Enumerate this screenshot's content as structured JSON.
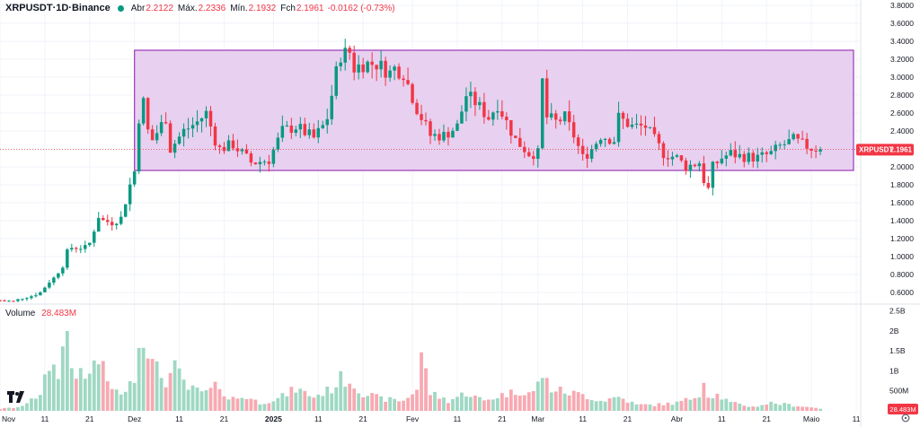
{
  "header": {
    "symbol": "XRPUSDT",
    "sep1": " · ",
    "interval": "1D",
    "sep2": " · ",
    "exchange": "Binance",
    "open_label": "Abr",
    "open_value": "2.2122",
    "high_label": "Máx.",
    "high_value": "2.2336",
    "low_label": "Mín.",
    "low_value": "2.1932",
    "close_label": "Fch",
    "close_value": "2.1961",
    "change_value": "-0.0162 (-0.73%)"
  },
  "volume_panel": {
    "label": "Volume",
    "value": "28.483M",
    "badge": "28.483M"
  },
  "price_badge": {
    "text": "XRPUSDT",
    "value": "2.1961"
  },
  "colors": {
    "up": "#089981",
    "down": "#f23645",
    "up_vol": "#9fd8c3",
    "down_vol": "#f7a9b1",
    "range_fill": "#e8d0f0",
    "range_stroke": "#9b38b8"
  },
  "chart_data": {
    "type": "candlestick",
    "x_range": [
      "2024-11-01",
      "2025-05-12"
    ],
    "price_ylim": [
      0.5,
      3.8
    ],
    "volume_ylim": [
      0,
      2.6
    ],
    "volume_unit": "B",
    "price_ticks": [
      "0.6000",
      "0.8000",
      "1.0000",
      "1.2000",
      "1.4000",
      "1.6000",
      "1.8000",
      "2.0000",
      "2.2000",
      "2.4000",
      "2.6000",
      "2.8000",
      "3.0000",
      "3.2000",
      "3.4000",
      "3.6000",
      "3.8000"
    ],
    "volume_ticks": [
      {
        "v": 0.5,
        "label": "500M"
      },
      {
        "v": 1.0,
        "label": "1B"
      },
      {
        "v": 1.5,
        "label": "1.5B"
      },
      {
        "v": 2.0,
        "label": "2B"
      },
      {
        "v": 2.5,
        "label": "2.5B"
      }
    ],
    "x_ticks": [
      {
        "date": "2024-11-01",
        "label": "Nov",
        "bold": false
      },
      {
        "date": "2024-11-11",
        "label": "11",
        "bold": false
      },
      {
        "date": "2024-11-21",
        "label": "21",
        "bold": false
      },
      {
        "date": "2024-12-01",
        "label": "Dez",
        "bold": false
      },
      {
        "date": "2024-12-11",
        "label": "11",
        "bold": false
      },
      {
        "date": "2024-12-21",
        "label": "21",
        "bold": false
      },
      {
        "date": "2025-01-01",
        "label": "2025",
        "bold": true
      },
      {
        "date": "2025-01-11",
        "label": "11",
        "bold": false
      },
      {
        "date": "2025-01-21",
        "label": "21",
        "bold": false
      },
      {
        "date": "2025-02-01",
        "label": "Fev",
        "bold": false
      },
      {
        "date": "2025-02-11",
        "label": "11",
        "bold": false
      },
      {
        "date": "2025-02-21",
        "label": "21",
        "bold": false
      },
      {
        "date": "2025-03-01",
        "label": "Mar",
        "bold": false
      },
      {
        "date": "2025-03-11",
        "label": "11",
        "bold": false
      },
      {
        "date": "2025-03-21",
        "label": "21",
        "bold": false
      },
      {
        "date": "2025-04-01",
        "label": "Abr",
        "bold": false
      },
      {
        "date": "2025-04-11",
        "label": "11",
        "bold": false
      },
      {
        "date": "2025-04-21",
        "label": "21",
        "bold": false
      },
      {
        "date": "2025-05-01",
        "label": "Maio",
        "bold": false
      },
      {
        "date": "2025-05-11",
        "label": "11",
        "bold": false
      }
    ],
    "range_box": {
      "x0": "2024-12-01",
      "x1": "2025-05-12",
      "y_low": 1.96,
      "y_high": 3.3
    },
    "last_price": 2.1961,
    "close_anchors": [
      [
        "2024-11-01",
        0.51
      ],
      [
        "2024-11-04",
        0.5
      ],
      [
        "2024-11-06",
        0.54
      ],
      [
        "2024-11-08",
        0.56
      ],
      [
        "2024-11-10",
        0.6
      ],
      [
        "2024-11-12",
        0.72
      ],
      [
        "2024-11-13",
        0.76
      ],
      [
        "2024-11-15",
        0.9
      ],
      [
        "2024-11-16",
        1.05
      ],
      [
        "2024-11-17",
        1.1
      ],
      [
        "2024-11-20",
        1.1
      ],
      [
        "2024-11-21",
        1.15
      ],
      [
        "2024-11-23",
        1.45
      ],
      [
        "2024-11-24",
        1.4
      ],
      [
        "2024-11-26",
        1.38
      ],
      [
        "2024-11-28",
        1.43
      ],
      [
        "2024-11-30",
        1.8
      ],
      [
        "2024-12-01",
        1.95
      ],
      [
        "2024-12-02",
        2.55
      ],
      [
        "2024-12-03",
        2.72
      ],
      [
        "2024-12-04",
        2.4
      ],
      [
        "2024-12-05",
        2.3
      ],
      [
        "2024-12-08",
        2.55
      ],
      [
        "2024-12-09",
        2.2
      ],
      [
        "2024-12-12",
        2.4
      ],
      [
        "2024-12-15",
        2.5
      ],
      [
        "2024-12-17",
        2.6
      ],
      [
        "2024-12-19",
        2.3
      ],
      [
        "2024-12-20",
        2.2
      ],
      [
        "2024-12-23",
        2.25
      ],
      [
        "2024-12-27",
        2.05
      ],
      [
        "2024-12-28",
        2.05
      ],
      [
        "2024-12-31",
        2.08
      ],
      [
        "2025-01-03",
        2.4
      ],
      [
        "2025-01-06",
        2.45
      ],
      [
        "2025-01-10",
        2.32
      ],
      [
        "2025-01-12",
        2.45
      ],
      [
        "2025-01-13",
        2.55
      ],
      [
        "2025-01-15",
        3.05
      ],
      [
        "2025-01-16",
        3.25
      ],
      [
        "2025-01-18",
        3.28
      ],
      [
        "2025-01-19",
        3.1
      ],
      [
        "2025-01-21",
        3.15
      ],
      [
        "2025-01-24",
        3.15
      ],
      [
        "2025-01-27",
        3.05
      ],
      [
        "2025-01-28",
        3.1
      ],
      [
        "2025-01-30",
        3.05
      ],
      [
        "2025-02-02",
        2.65
      ],
      [
        "2025-02-03",
        2.55
      ],
      [
        "2025-02-05",
        2.35
      ],
      [
        "2025-02-08",
        2.35
      ],
      [
        "2025-02-11",
        2.45
      ],
      [
        "2025-02-13",
        2.8
      ],
      [
        "2025-02-15",
        2.72
      ],
      [
        "2025-02-18",
        2.55
      ],
      [
        "2025-02-20",
        2.7
      ],
      [
        "2025-02-24",
        2.3
      ],
      [
        "2025-02-25",
        2.25
      ],
      [
        "2025-02-27",
        2.15
      ],
      [
        "2025-03-01",
        2.15
      ],
      [
        "2025-03-02",
        2.95
      ],
      [
        "2025-03-03",
        2.55
      ],
      [
        "2025-03-05",
        2.5
      ],
      [
        "2025-03-07",
        2.55
      ],
      [
        "2025-03-09",
        2.35
      ],
      [
        "2025-03-11",
        2.1
      ],
      [
        "2025-03-13",
        2.2
      ],
      [
        "2025-03-15",
        2.35
      ],
      [
        "2025-03-18",
        2.3
      ],
      [
        "2025-03-19",
        2.55
      ],
      [
        "2025-03-22",
        2.45
      ],
      [
        "2025-03-25",
        2.45
      ],
      [
        "2025-03-27",
        2.3
      ],
      [
        "2025-03-29",
        2.15
      ],
      [
        "2025-04-01",
        2.1
      ],
      [
        "2025-04-03",
        2.0
      ],
      [
        "2025-04-06",
        2.05
      ],
      [
        "2025-04-07",
        1.85
      ],
      [
        "2025-04-08",
        1.75
      ],
      [
        "2025-04-09",
        2.0
      ],
      [
        "2025-04-11",
        2.1
      ],
      [
        "2025-04-13",
        2.15
      ],
      [
        "2025-04-15",
        2.12
      ],
      [
        "2025-04-19",
        2.1
      ],
      [
        "2025-04-22",
        2.15
      ],
      [
        "2025-04-24",
        2.23
      ],
      [
        "2025-04-27",
        2.3
      ],
      [
        "2025-04-29",
        2.25
      ],
      [
        "2025-05-01",
        2.21
      ],
      [
        "2025-05-03",
        2.2
      ]
    ],
    "volume_anchors": [
      [
        "2024-11-01",
        0.05
      ],
      [
        "2024-11-06",
        0.1
      ],
      [
        "2024-11-08",
        0.35
      ],
      [
        "2024-11-10",
        0.35
      ],
      [
        "2024-11-12",
        1.15
      ],
      [
        "2024-11-14",
        1.0
      ],
      [
        "2024-11-16",
        2.0
      ],
      [
        "2024-11-17",
        1.1
      ],
      [
        "2024-11-20",
        0.75
      ],
      [
        "2024-11-21",
        1.0
      ],
      [
        "2024-11-23",
        1.25
      ],
      [
        "2024-11-25",
        0.75
      ],
      [
        "2024-11-28",
        0.35
      ],
      [
        "2024-11-30",
        0.9
      ],
      [
        "2024-12-01",
        0.7
      ],
      [
        "2024-12-02",
        1.75
      ],
      [
        "2024-12-03",
        2.1
      ],
      [
        "2024-12-05",
        1.15
      ],
      [
        "2024-12-08",
        0.75
      ],
      [
        "2024-12-10",
        1.05
      ],
      [
        "2024-12-13",
        0.55
      ],
      [
        "2024-12-17",
        0.45
      ],
      [
        "2024-12-20",
        0.65
      ],
      [
        "2024-12-22",
        0.3
      ],
      [
        "2024-12-26",
        0.35
      ],
      [
        "2024-12-29",
        0.2
      ],
      [
        "2025-01-02",
        0.3
      ],
      [
        "2025-01-06",
        0.55
      ],
      [
        "2025-01-10",
        0.35
      ],
      [
        "2025-01-14",
        0.55
      ],
      [
        "2025-01-16",
        0.8
      ],
      [
        "2025-01-18",
        0.75
      ],
      [
        "2025-01-21",
        0.45
      ],
      [
        "2025-01-25",
        0.3
      ],
      [
        "2025-01-30",
        0.25
      ],
      [
        "2025-02-02",
        0.55
      ],
      [
        "2025-02-03",
        1.45
      ],
      [
        "2025-02-05",
        0.45
      ],
      [
        "2025-02-09",
        0.25
      ],
      [
        "2025-02-13",
        0.45
      ],
      [
        "2025-02-17",
        0.25
      ],
      [
        "2025-02-21",
        0.4
      ],
      [
        "2025-02-25",
        0.5
      ],
      [
        "2025-02-28",
        0.45
      ],
      [
        "2025-03-02",
        0.9
      ],
      [
        "2025-03-04",
        0.55
      ],
      [
        "2025-03-08",
        0.45
      ],
      [
        "2025-03-11",
        0.4
      ],
      [
        "2025-03-15",
        0.25
      ],
      [
        "2025-03-19",
        0.35
      ],
      [
        "2025-03-23",
        0.15
      ],
      [
        "2025-03-27",
        0.15
      ],
      [
        "2025-04-01",
        0.2
      ],
      [
        "2025-04-04",
        0.3
      ],
      [
        "2025-04-06",
        0.45
      ],
      [
        "2025-04-07",
        0.65
      ],
      [
        "2025-04-08",
        0.4
      ],
      [
        "2025-04-10",
        0.4
      ],
      [
        "2025-04-13",
        0.2
      ],
      [
        "2025-04-18",
        0.1
      ],
      [
        "2025-04-22",
        0.2
      ],
      [
        "2025-04-26",
        0.15
      ],
      [
        "2025-04-30",
        0.1
      ],
      [
        "2025-05-03",
        0.06
      ]
    ],
    "volume_fix": [
      [
        "2025-04-07",
        0.7
      ]
    ]
  }
}
